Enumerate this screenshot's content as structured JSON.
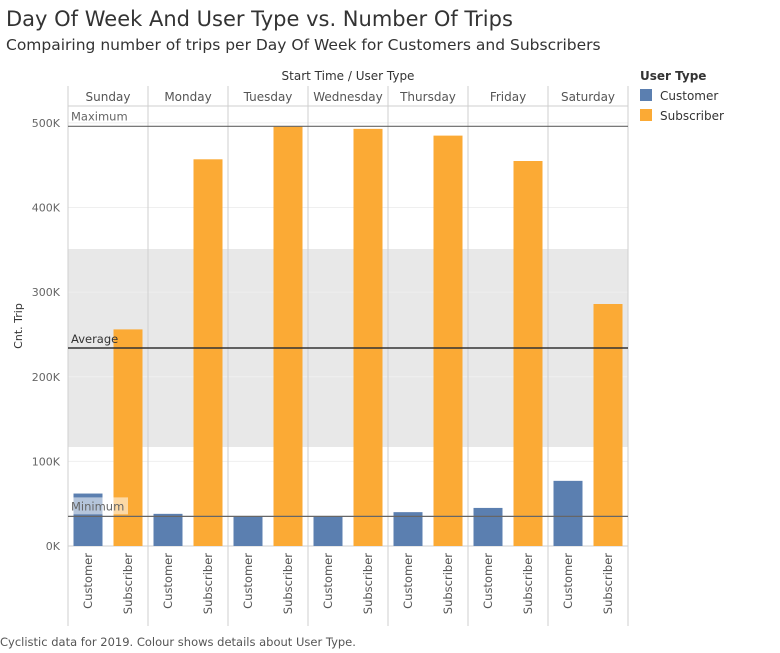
{
  "title": "Day Of Week And User Type vs. Number Of Trips",
  "subtitle": "Compairing number of trips per Day Of Week for Customers and Subscribers",
  "footer": "Cyclistic data for 2019. Colour shows details about User Type.",
  "legend": {
    "title": "User Type",
    "items": [
      {
        "label": "Customer",
        "color": "#5b7fb0"
      },
      {
        "label": "Subscriber",
        "color": "#fbaa35"
      }
    ]
  },
  "chart_data": {
    "type": "bar",
    "column_header": "Start Time  /  User Type",
    "ylabel": "Cnt. Trip",
    "ylim": [
      0,
      520000
    ],
    "yticks": [
      0,
      100000,
      200000,
      300000,
      400000,
      500000
    ],
    "ytick_labels": [
      "0K",
      "100K",
      "200K",
      "300K",
      "400K",
      "500K"
    ],
    "categories": [
      "Sunday",
      "Monday",
      "Tuesday",
      "Wednesday",
      "Thursday",
      "Friday",
      "Saturday"
    ],
    "sub_categories": [
      "Customer",
      "Subscriber"
    ],
    "series": [
      {
        "name": "Customer",
        "color": "#5b7fb0",
        "values": [
          62000,
          38000,
          35000,
          35000,
          40000,
          45000,
          77000
        ]
      },
      {
        "name": "Subscriber",
        "color": "#fbaa35",
        "values": [
          256000,
          457000,
          496000,
          493000,
          485000,
          455000,
          286000
        ]
      }
    ],
    "reference_lines": [
      {
        "label": "Maximum",
        "value": 496000
      },
      {
        "label": "Average",
        "value": 234000
      },
      {
        "label": "Minimum",
        "value": 35000
      }
    ],
    "reference_band": [
      117000,
      351000
    ],
    "grid": true
  }
}
